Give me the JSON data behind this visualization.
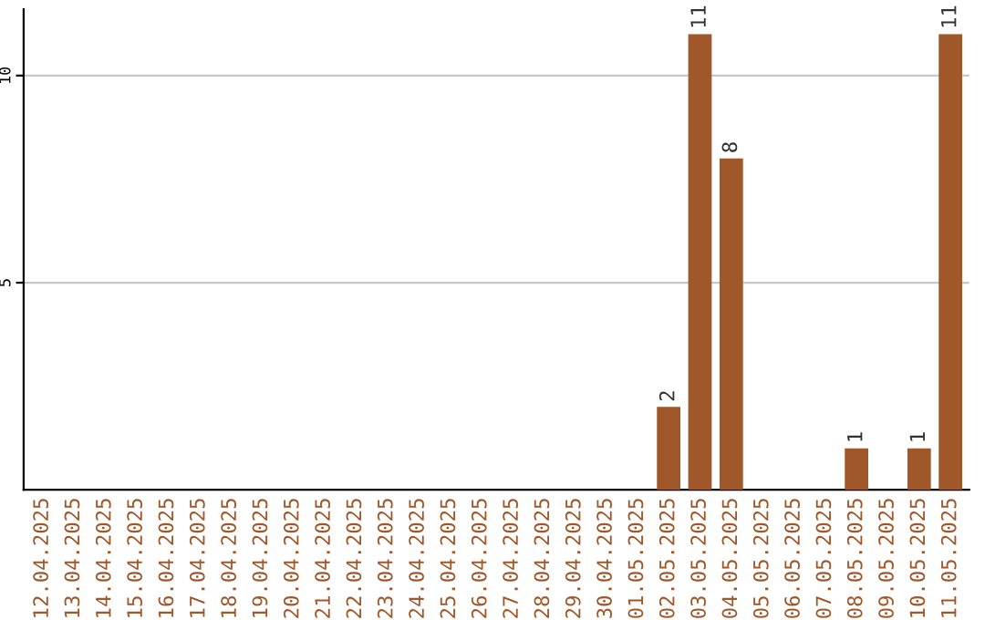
{
  "chart_data": {
    "type": "bar",
    "categories": [
      "12.04.2025",
      "13.04.2025",
      "14.04.2025",
      "15.04.2025",
      "16.04.2025",
      "17.04.2025",
      "18.04.2025",
      "19.04.2025",
      "20.04.2025",
      "21.04.2025",
      "22.04.2025",
      "23.04.2025",
      "24.04.2025",
      "25.04.2025",
      "26.04.2025",
      "27.04.2025",
      "28.04.2025",
      "29.04.2025",
      "30.04.2025",
      "01.05.2025",
      "02.05.2025",
      "03.05.2025",
      "04.05.2025",
      "05.05.2025",
      "06.05.2025",
      "07.05.2025",
      "08.05.2025",
      "09.05.2025",
      "10.05.2025",
      "11.05.2025"
    ],
    "values": [
      0,
      0,
      0,
      0,
      0,
      0,
      0,
      0,
      0,
      0,
      0,
      0,
      0,
      0,
      0,
      0,
      0,
      0,
      0,
      0,
      2,
      11,
      8,
      0,
      0,
      0,
      1,
      0,
      1,
      11
    ],
    "value_labels": [
      null,
      null,
      null,
      null,
      null,
      null,
      null,
      null,
      null,
      null,
      null,
      null,
      null,
      null,
      null,
      null,
      null,
      null,
      null,
      null,
      "2",
      "11",
      "8",
      null,
      null,
      null,
      "1",
      null,
      "1",
      "11"
    ],
    "color": "#a0572a",
    "ylim": [
      0,
      11.6
    ],
    "yticks": [
      5,
      10
    ],
    "grid": "y",
    "legend": false
  }
}
